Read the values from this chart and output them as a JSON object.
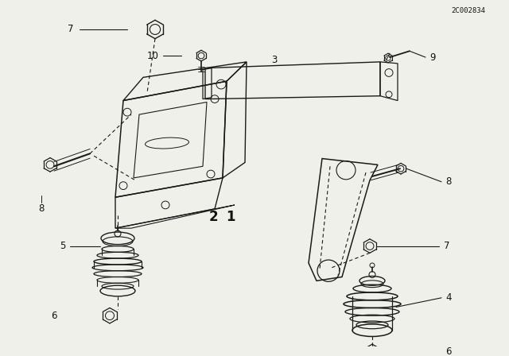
{
  "bg_color": "#f0f0eb",
  "line_color": "#1a1a1a",
  "text_color": "#111111",
  "part_number": "2C002834",
  "figsize": [
    6.4,
    4.48
  ],
  "dpi": 100
}
